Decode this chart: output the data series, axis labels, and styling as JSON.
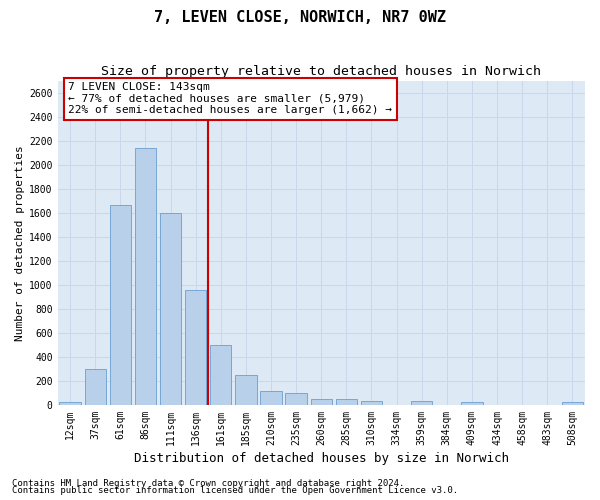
{
  "title": "7, LEVEN CLOSE, NORWICH, NR7 0WZ",
  "subtitle": "Size of property relative to detached houses in Norwich",
  "xlabel": "Distribution of detached houses by size in Norwich",
  "ylabel": "Number of detached properties",
  "footnote1": "Contains HM Land Registry data © Crown copyright and database right 2024.",
  "footnote2": "Contains public sector information licensed under the Open Government Licence v3.0.",
  "categories": [
    "12sqm",
    "37sqm",
    "61sqm",
    "86sqm",
    "111sqm",
    "136sqm",
    "161sqm",
    "185sqm",
    "210sqm",
    "235sqm",
    "260sqm",
    "285sqm",
    "310sqm",
    "334sqm",
    "359sqm",
    "384sqm",
    "409sqm",
    "434sqm",
    "458sqm",
    "483sqm",
    "508sqm"
  ],
  "values": [
    25,
    300,
    1665,
    2140,
    1595,
    960,
    500,
    250,
    120,
    100,
    50,
    50,
    35,
    0,
    35,
    0,
    25,
    0,
    0,
    0,
    25
  ],
  "bar_color": "#b8d0ea",
  "bar_edge_color": "#6a9fd0",
  "vline_color": "#cc0000",
  "annotation_line1": "7 LEVEN CLOSE: 143sqm",
  "annotation_line2": "← 77% of detached houses are smaller (5,979)",
  "annotation_line3": "22% of semi-detached houses are larger (1,662) →",
  "annotation_box_edgecolor": "#cc0000",
  "ylim_max": 2700,
  "yticks": [
    0,
    200,
    400,
    600,
    800,
    1000,
    1200,
    1400,
    1600,
    1800,
    2000,
    2200,
    2400,
    2600
  ],
  "grid_color": "#c8d8ea",
  "ax_bg_color": "#ddeaf5",
  "title_fontsize": 11,
  "subtitle_fontsize": 9.5,
  "ylabel_fontsize": 8,
  "xlabel_fontsize": 9,
  "tick_fontsize": 7,
  "annotation_fontsize": 8,
  "footnote_fontsize": 6.5
}
